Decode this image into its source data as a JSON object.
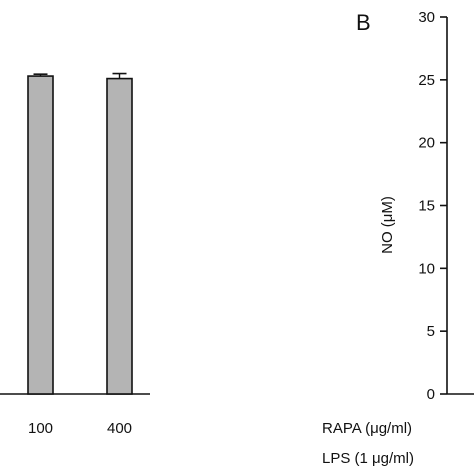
{
  "panel_a": {
    "chart_data": {
      "type": "bar",
      "categories": [
        "100",
        "400"
      ],
      "values": [
        25.3,
        25.1
      ],
      "errors": [
        0.15,
        0.4
      ],
      "ylim": [
        0,
        30
      ],
      "bar_color": "#b4b4b4",
      "error_bar_color": "#111111"
    }
  },
  "panel_b": {
    "label": "B",
    "chart_data": {
      "type": "bar",
      "ylabel": "NO (μM)",
      "yticks": [
        "0",
        "5",
        "10",
        "15",
        "20",
        "25",
        "30"
      ],
      "ylim": [
        0,
        30
      ]
    },
    "row_labels": {
      "rapa": "RAPA (μg/ml)",
      "lps": "LPS (1 μg/ml)"
    }
  }
}
